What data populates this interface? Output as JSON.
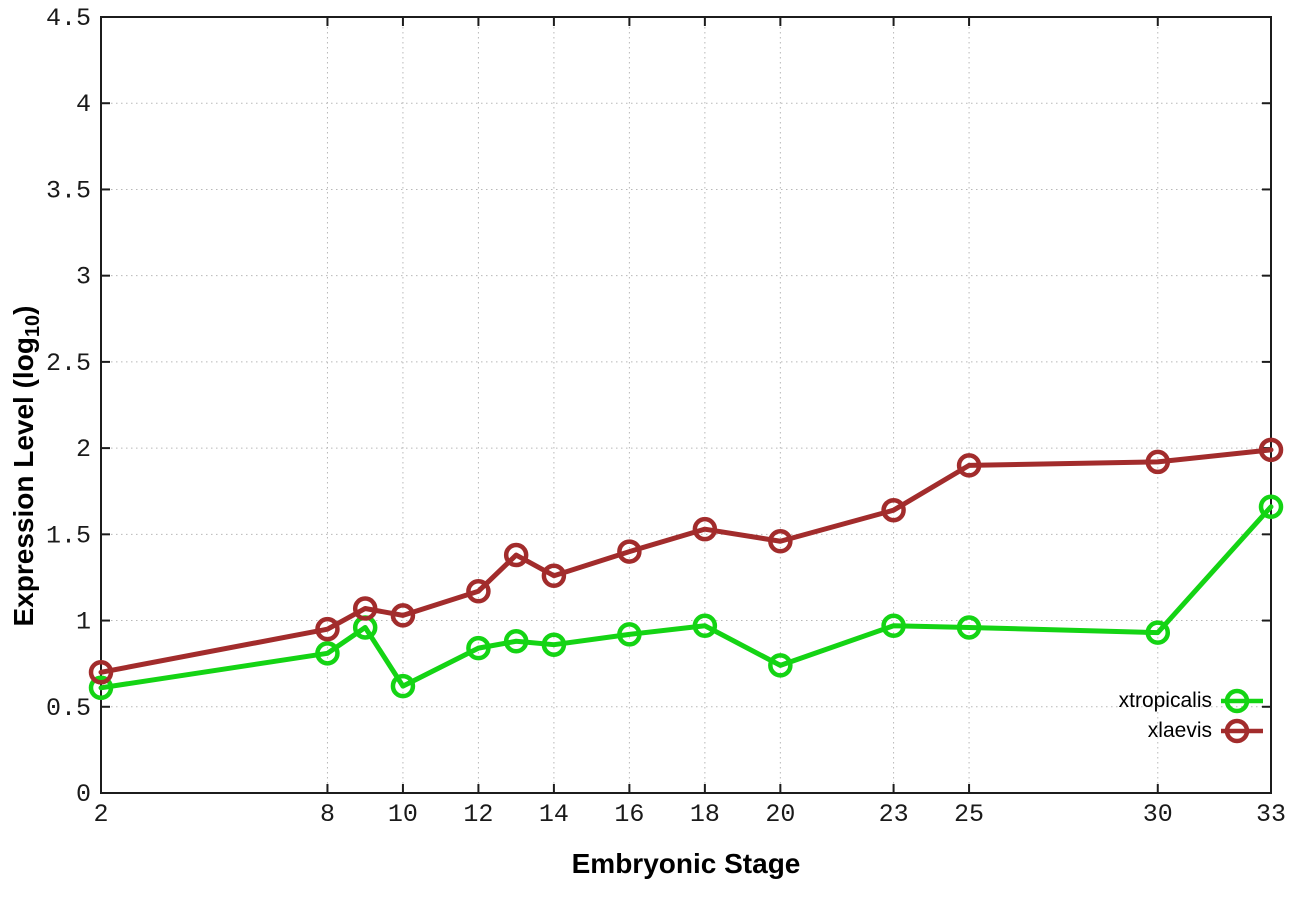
{
  "chart_data": {
    "type": "line",
    "title": "",
    "xlabel": "Embryonic Stage",
    "ylabel": {
      "prefix": "Expression Level (log",
      "sub": "10",
      "suffix": ")"
    },
    "xlim": [
      2,
      33
    ],
    "ylim": [
      0,
      4.5
    ],
    "grid": true,
    "legend_position": "inside bottom-right",
    "x": [
      2,
      8,
      9,
      10,
      12,
      13,
      14,
      16,
      18,
      20,
      23,
      25,
      30,
      33
    ],
    "x_ticks": [
      2,
      8,
      10,
      12,
      14,
      16,
      18,
      20,
      23,
      25,
      30,
      33
    ],
    "x_tick_labels": [
      "2",
      "8",
      "10",
      "12",
      "14",
      "16",
      "18",
      "20",
      "23",
      "25",
      "30",
      "33"
    ],
    "y_ticks": [
      0,
      0.5,
      1,
      1.5,
      2,
      2.5,
      3,
      3.5,
      4,
      4.5
    ],
    "y_tick_labels": [
      "0",
      "0.5",
      "1",
      "1.5",
      "2",
      "2.5",
      "3",
      "3.5",
      "4",
      "4.5"
    ],
    "series": [
      {
        "name": "xtropicalis",
        "color": "#14d414",
        "values": [
          0.61,
          0.81,
          0.96,
          0.62,
          0.84,
          0.88,
          0.86,
          0.92,
          0.97,
          0.74,
          0.97,
          0.96,
          0.93,
          1.66
        ]
      },
      {
        "name": "xlaevis",
        "color": "#a22c2c",
        "values": [
          0.7,
          0.95,
          1.07,
          1.03,
          1.17,
          1.38,
          1.26,
          1.4,
          1.53,
          1.46,
          1.64,
          1.9,
          1.92,
          1.99
        ]
      }
    ],
    "colors": {
      "grid": "#b8b8b8",
      "axis": "#1c1c1c",
      "text": "#000000"
    }
  }
}
